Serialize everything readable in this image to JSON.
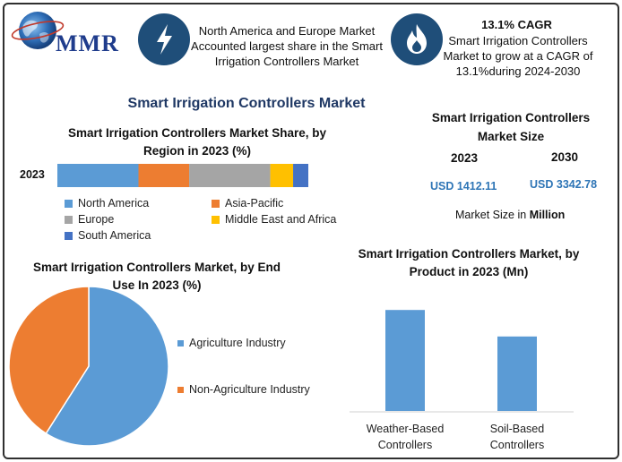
{
  "brand": {
    "name": "MMR",
    "logo": "globe-icon"
  },
  "highlights": [
    {
      "icon": "lightning-icon",
      "text": "North America and Europe Market Accounted largest share in the Smart Irrigation Controllers Market"
    },
    {
      "icon": "flame-icon",
      "heading": "13.1% CAGR",
      "text": "Smart Irrigation Controllers Market to grow at a CAGR of 13.1%during 2024-2030"
    }
  ],
  "main_title": "Smart Irrigation Controllers Market",
  "market_size": {
    "title": "Smart Irrigation Controllers Market Size",
    "years": [
      "2023",
      "2030"
    ],
    "values": [
      "USD 1412.11",
      "USD 3342.78"
    ],
    "note_prefix": "Market Size in",
    "note_unit": "Million"
  },
  "chart_data": [
    {
      "type": "bar",
      "orientation": "horizontal-stacked",
      "title": "Smart Irrigation Controllers Market Share, by Region in 2023 (%)",
      "categories": [
        "2023"
      ],
      "series": [
        {
          "name": "North America",
          "values": [
            32
          ],
          "color": "#5b9bd5"
        },
        {
          "name": "Asia-Pacific",
          "values": [
            20
          ],
          "color": "#ed7d31"
        },
        {
          "name": "Europe",
          "values": [
            32
          ],
          "color": "#a5a5a5"
        },
        {
          "name": "Middle East and Africa",
          "values": [
            9
          ],
          "color": "#ffc000"
        },
        {
          "name": "South America",
          "values": [
            6
          ],
          "color": "#4472c4"
        }
      ],
      "legend_position": "bottom"
    },
    {
      "type": "pie",
      "title": "Smart Irrigation Controllers Market, by End Use In 2023 (%)",
      "labels": [
        "Agriculture Industry",
        "Non-Agriculture Industry"
      ],
      "values": [
        59,
        41
      ],
      "colors": [
        "#5b9bd5",
        "#ed7d31"
      ],
      "legend_position": "right"
    },
    {
      "type": "bar",
      "title": "Smart Irrigation Controllers Market, by Product in 2023 (Mn)",
      "categories": [
        "Weather-Based Controllers",
        "Soil-Based Controllers"
      ],
      "category_lines": [
        [
          "Weather-Based",
          "Controllers"
        ],
        [
          "Soil-Based",
          "Controllers"
        ]
      ],
      "values": [
        800,
        590
      ],
      "ylim": [
        0,
        1000
      ],
      "color": "#5b9bd5",
      "grid": false
    }
  ]
}
